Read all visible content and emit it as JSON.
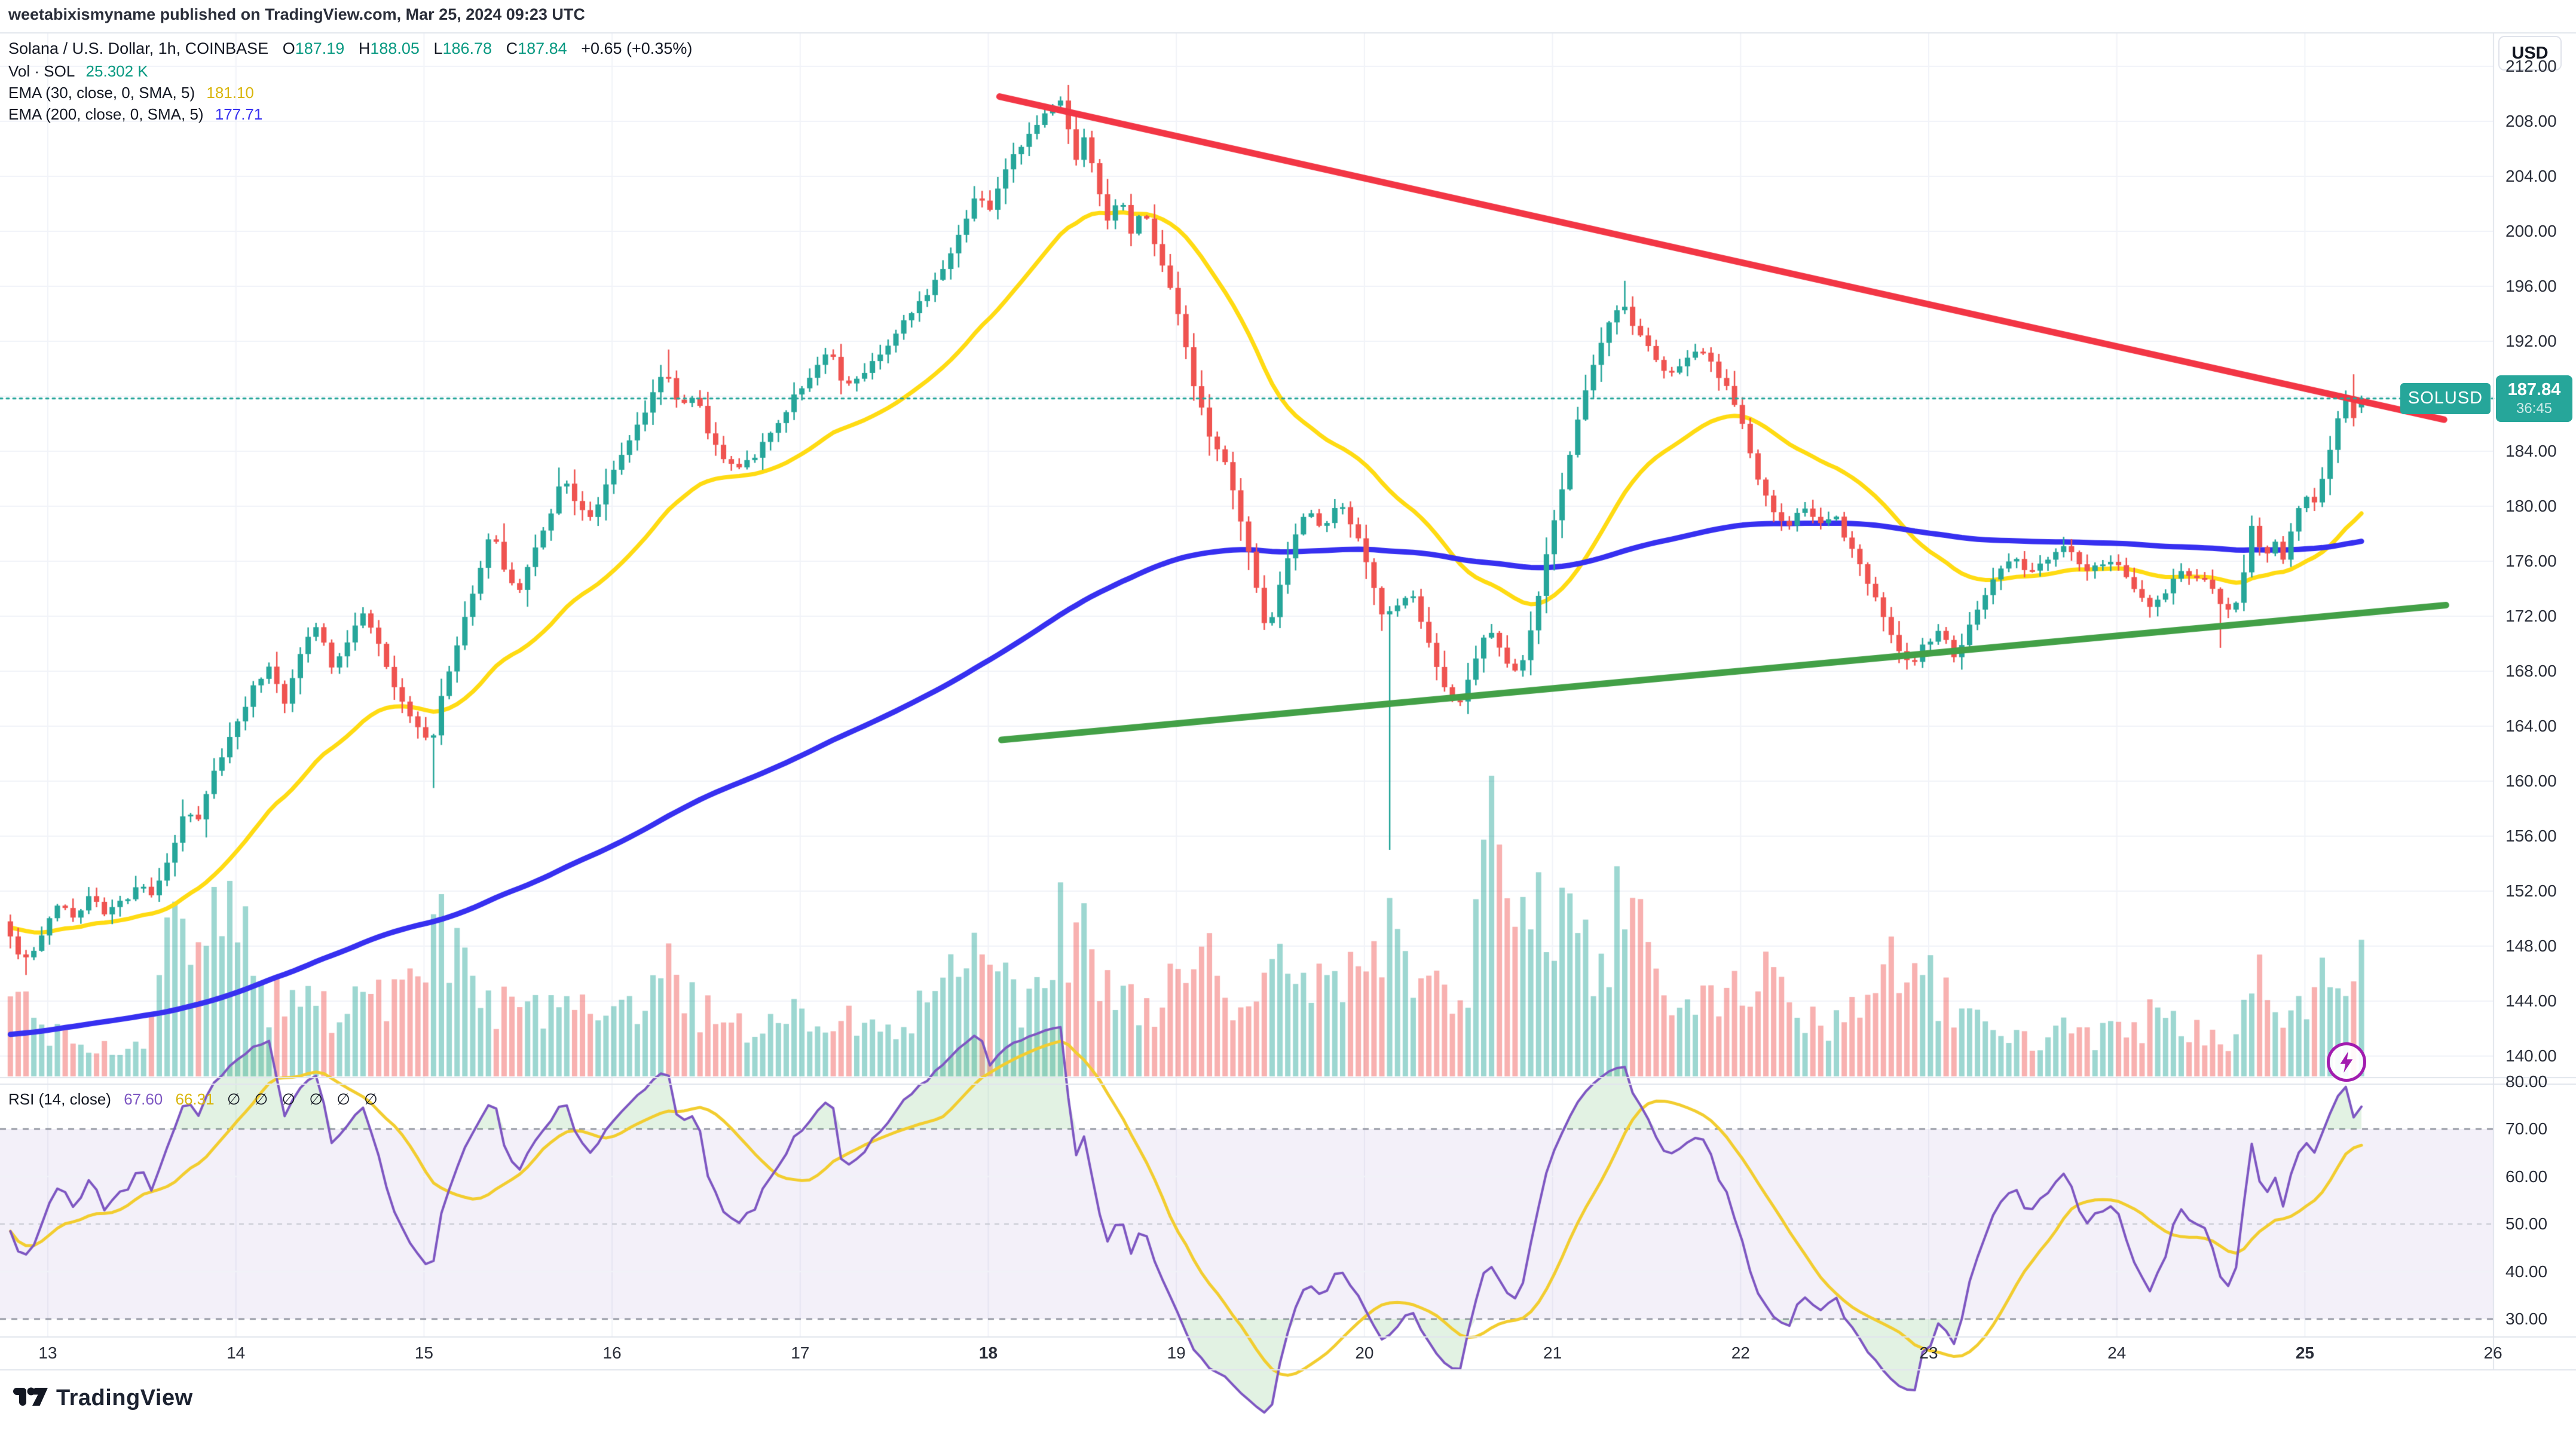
{
  "header": {
    "watermark": "weetabixismyname published on TradingView.com, Mar 25, 2024 09:23 UTC",
    "symbol_line": {
      "title": "Solana / U.S. Dollar, 1h, COINBASE",
      "open_label": "O",
      "open": "187.19",
      "high_label": "H",
      "high": "188.05",
      "low_label": "L",
      "low": "186.78",
      "close_label": "C",
      "close": "187.84",
      "change": "+0.65 (+0.35%)"
    },
    "volume_line": {
      "label": "Vol · SOL",
      "value": "25.302 K"
    },
    "ema30_line": {
      "label": "EMA (30, close, 0, SMA, 5)",
      "value": "181.10"
    },
    "ema200_line": {
      "label": "EMA (200, close, 0, SMA, 5)",
      "value": "177.71"
    }
  },
  "price_axis": {
    "currency_button": "USD",
    "tick_values": [
      212,
      208,
      204,
      200,
      196,
      192,
      188,
      184,
      180,
      176,
      172,
      168,
      164,
      160,
      156,
      152,
      148,
      144,
      140
    ],
    "price_label": {
      "symbol": "SOLUSD",
      "price": "187.84",
      "countdown": "36:45"
    }
  },
  "rsi_axis": {
    "tick_values": [
      80,
      70,
      60,
      50,
      40,
      30
    ]
  },
  "time_axis": {
    "ticks": [
      {
        "label": "13",
        "bold": false
      },
      {
        "label": "14",
        "bold": false
      },
      {
        "label": "15",
        "bold": false
      },
      {
        "label": "16",
        "bold": false
      },
      {
        "label": "17",
        "bold": false
      },
      {
        "label": "18",
        "bold": true
      },
      {
        "label": "19",
        "bold": false
      },
      {
        "label": "20",
        "bold": false
      },
      {
        "label": "21",
        "bold": false
      },
      {
        "label": "22",
        "bold": false
      },
      {
        "label": "23",
        "bold": false
      },
      {
        "label": "24",
        "bold": false
      },
      {
        "label": "25",
        "bold": true
      },
      {
        "label": "26",
        "bold": false
      }
    ]
  },
  "rsi_legend": {
    "title": "RSI (14, close)",
    "value": "67.60",
    "ma_value": "66.31",
    "empty_values": "∅ ∅ ∅ ∅ ∅ ∅"
  },
  "footer": {
    "logo_text": "TradingView"
  },
  "colors": {
    "up": "#26a69a",
    "down": "#ef5350",
    "vol_up": "rgba(38,166,154,0.45)",
    "vol_down": "rgba(239,83,80,0.45)",
    "ema30": "#ffdb13",
    "ema200": "#3730f0",
    "rsi": "#7e57c2",
    "rsi_ma": "#f2cd30",
    "rsi_band": "rgba(126,87,194,0.09)",
    "rsi_over_fill": "rgba(76,175,80,0.16)",
    "trend_red": "#f23645",
    "trend_green": "#43a047",
    "price_line": "#26a69a",
    "label_bg": "#26a69a",
    "grid": "#f1f3f8",
    "frame": "#e1e4ec",
    "text": "#131722",
    "text_green": "#089981",
    "dash_strong": "#8b8f9b",
    "dash_mid": "#c6c9d2"
  },
  "chart_data": {
    "type": "candlestick",
    "title": "Solana / U.S. Dollar",
    "symbol": "SOLUSD",
    "exchange": "COINBASE",
    "interval": "1h",
    "current_bar": {
      "open": 187.19,
      "high": 188.05,
      "low": 186.78,
      "close": 187.84,
      "volume_k": 25.302,
      "change": 0.65,
      "change_pct": 0.35
    },
    "price_line_value": 187.84,
    "x_axis": {
      "unit": "day of March 2024",
      "visible_range": [
        12.55,
        26.05
      ],
      "day_ticks": [
        13,
        14,
        15,
        16,
        17,
        18,
        19,
        20,
        21,
        22,
        23,
        24,
        25,
        26
      ]
    },
    "price_axis_range": [
      139.2,
      213.4
    ],
    "rsi_axis_range": [
      25,
      82
    ],
    "grid": true,
    "legend_position": "top-left",
    "indicators": {
      "volume": {
        "label": "Vol · SOL",
        "last_k": 25.302
      },
      "ema30": {
        "period": 30,
        "source": "close",
        "last": 181.1
      },
      "ema200": {
        "period": 200,
        "source": "close",
        "last": 177.71
      },
      "rsi": {
        "period": 14,
        "source": "close",
        "last": 67.6,
        "ma_last": 66.31,
        "overbought": 70,
        "oversold": 30,
        "middle": 50
      }
    },
    "trendlines": [
      {
        "name": "descending-resistance",
        "color_key": "trend_red",
        "from": {
          "day": 18.06,
          "price": 209.8
        },
        "to": {
          "day": 25.74,
          "price": 186.3
        }
      },
      {
        "name": "ascending-support",
        "color_key": "trend_green",
        "from": {
          "day": 18.07,
          "price": 163.0
        },
        "to": {
          "day": 25.75,
          "price": 172.8
        }
      }
    ],
    "series": {
      "start_day": 12.78,
      "bar_hours": 1,
      "bars": 301,
      "rng_seed": 42,
      "price_keyframes": [
        [
          12.78,
          149.8
        ],
        [
          12.86,
          147.6
        ],
        [
          12.92,
          146.8
        ],
        [
          13.0,
          149.0
        ],
        [
          13.08,
          151.3
        ],
        [
          13.16,
          150.0
        ],
        [
          13.24,
          151.8
        ],
        [
          13.32,
          150.4
        ],
        [
          13.42,
          151.2
        ],
        [
          13.5,
          152.4
        ],
        [
          13.58,
          151.6
        ],
        [
          13.68,
          155.0
        ],
        [
          13.76,
          158.0
        ],
        [
          13.82,
          157.0
        ],
        [
          13.9,
          160.5
        ],
        [
          14.0,
          163.5
        ],
        [
          14.1,
          166.5
        ],
        [
          14.2,
          168.5
        ],
        [
          14.28,
          165.8
        ],
        [
          14.38,
          170.0
        ],
        [
          14.46,
          171.6
        ],
        [
          14.52,
          168.2
        ],
        [
          14.6,
          169.5
        ],
        [
          14.68,
          172.4
        ],
        [
          14.76,
          170.5
        ],
        [
          14.84,
          167.5
        ],
        [
          14.92,
          165.2
        ],
        [
          15.0,
          163.6
        ],
        [
          15.06,
          162.9
        ],
        [
          15.14,
          167.5
        ],
        [
          15.22,
          171.0
        ],
        [
          15.3,
          174.5
        ],
        [
          15.38,
          178.4
        ],
        [
          15.46,
          175.0
        ],
        [
          15.52,
          173.8
        ],
        [
          15.6,
          176.5
        ],
        [
          15.68,
          179.0
        ],
        [
          15.76,
          182.3
        ],
        [
          15.84,
          180.0
        ],
        [
          15.92,
          179.0
        ],
        [
          16.0,
          182.0
        ],
        [
          16.1,
          184.5
        ],
        [
          16.2,
          187.0
        ],
        [
          16.3,
          190.2
        ],
        [
          16.38,
          187.0
        ],
        [
          16.46,
          188.3
        ],
        [
          16.54,
          185.0
        ],
        [
          16.62,
          183.5
        ],
        [
          16.7,
          182.8
        ],
        [
          16.8,
          184.0
        ],
        [
          16.9,
          186.0
        ],
        [
          17.0,
          188.2
        ],
        [
          17.1,
          190.0
        ],
        [
          17.18,
          191.2
        ],
        [
          17.26,
          188.5
        ],
        [
          17.34,
          189.5
        ],
        [
          17.42,
          190.8
        ],
        [
          17.5,
          192.0
        ],
        [
          17.58,
          193.5
        ],
        [
          17.66,
          194.8
        ],
        [
          17.74,
          196.5
        ],
        [
          17.82,
          198.5
        ],
        [
          17.9,
          201.0
        ],
        [
          17.96,
          202.8
        ],
        [
          18.02,
          201.5
        ],
        [
          18.1,
          204.0
        ],
        [
          18.18,
          206.0
        ],
        [
          18.26,
          207.5
        ],
        [
          18.34,
          208.8
        ],
        [
          18.42,
          209.6
        ],
        [
          18.48,
          204.8
        ],
        [
          18.54,
          207.0
        ],
        [
          18.6,
          203.0
        ],
        [
          18.66,
          200.5
        ],
        [
          18.72,
          202.5
        ],
        [
          18.78,
          199.8
        ],
        [
          18.84,
          201.5
        ],
        [
          18.9,
          199.5
        ],
        [
          18.96,
          197.0
        ],
        [
          19.04,
          193.5
        ],
        [
          19.12,
          188.5
        ],
        [
          19.2,
          185.0
        ],
        [
          19.28,
          183.0
        ],
        [
          19.36,
          179.0
        ],
        [
          19.44,
          174.5
        ],
        [
          19.5,
          170.5
        ],
        [
          19.56,
          173.5
        ],
        [
          19.64,
          177.5
        ],
        [
          19.72,
          180.0
        ],
        [
          19.8,
          178.0
        ],
        [
          19.88,
          180.5
        ],
        [
          19.96,
          178.5
        ],
        [
          20.04,
          175.5
        ],
        [
          20.12,
          172.0
        ],
        [
          20.2,
          172.8
        ],
        [
          20.28,
          173.5
        ],
        [
          20.36,
          170.0
        ],
        [
          20.44,
          167.0
        ],
        [
          20.52,
          165.5
        ],
        [
          20.6,
          168.5
        ],
        [
          20.68,
          171.5
        ],
        [
          20.76,
          169.0
        ],
        [
          20.84,
          167.8
        ],
        [
          20.92,
          172.0
        ],
        [
          21.0,
          177.0
        ],
        [
          21.08,
          182.0
        ],
        [
          21.16,
          186.5
        ],
        [
          21.24,
          190.5
        ],
        [
          21.32,
          193.5
        ],
        [
          21.4,
          194.5
        ],
        [
          21.48,
          192.5
        ],
        [
          21.56,
          191.0
        ],
        [
          21.64,
          189.5
        ],
        [
          21.72,
          190.5
        ],
        [
          21.8,
          191.5
        ],
        [
          21.88,
          190.0
        ],
        [
          21.96,
          188.5
        ],
        [
          22.04,
          185.5
        ],
        [
          22.12,
          181.5
        ],
        [
          22.2,
          179.5
        ],
        [
          22.28,
          178.5
        ],
        [
          22.36,
          180.0
        ],
        [
          22.44,
          178.5
        ],
        [
          22.52,
          179.5
        ],
        [
          22.6,
          177.0
        ],
        [
          22.68,
          175.0
        ],
        [
          22.76,
          172.5
        ],
        [
          22.84,
          170.0
        ],
        [
          22.92,
          168.3
        ],
        [
          23.0,
          170.0
        ],
        [
          23.08,
          171.0
        ],
        [
          23.16,
          168.8
        ],
        [
          23.24,
          171.5
        ],
        [
          23.32,
          173.5
        ],
        [
          23.4,
          175.5
        ],
        [
          23.48,
          176.3
        ],
        [
          23.56,
          175.0
        ],
        [
          23.64,
          176.0
        ],
        [
          23.72,
          177.2
        ],
        [
          23.8,
          176.2
        ],
        [
          23.88,
          175.2
        ],
        [
          23.96,
          176.0
        ],
        [
          24.04,
          175.5
        ],
        [
          24.12,
          174.0
        ],
        [
          24.2,
          172.8
        ],
        [
          24.28,
          173.8
        ],
        [
          24.36,
          175.2
        ],
        [
          24.44,
          174.8
        ],
        [
          24.52,
          174.2
        ],
        [
          24.6,
          172.5
        ],
        [
          24.68,
          173.5
        ],
        [
          24.74,
          178.8
        ],
        [
          24.8,
          176.0
        ],
        [
          24.86,
          177.5
        ],
        [
          24.9,
          175.6
        ],
        [
          24.96,
          178.9
        ],
        [
          25.02,
          181.0
        ],
        [
          25.08,
          180.2
        ],
        [
          25.14,
          183.5
        ],
        [
          25.2,
          186.5
        ],
        [
          25.24,
          188.0
        ],
        [
          25.27,
          186.0
        ],
        [
          25.3,
          187.3
        ],
        [
          25.32,
          187.84
        ]
      ],
      "wick_events": [
        {
          "day": 12.9,
          "low": 145.9
        },
        {
          "day": 15.06,
          "low": 159.5
        },
        {
          "day": 16.3,
          "high": 191.4
        },
        {
          "day": 18.42,
          "high": 210.3
        },
        {
          "day": 20.12,
          "low": 155.0
        },
        {
          "day": 21.4,
          "high": 196.4
        },
        {
          "day": 24.56,
          "low": 169.7
        },
        {
          "day": 25.26,
          "high": 189.6
        }
      ],
      "volume_keyframes_k": [
        [
          12.78,
          10
        ],
        [
          12.82,
          16
        ],
        [
          12.86,
          13
        ],
        [
          12.92,
          11
        ],
        [
          13.0,
          9
        ],
        [
          13.1,
          7
        ],
        [
          13.2,
          5
        ],
        [
          13.32,
          6
        ],
        [
          13.45,
          5
        ],
        [
          13.55,
          8
        ],
        [
          13.62,
          24
        ],
        [
          13.7,
          30
        ],
        [
          13.78,
          22
        ],
        [
          13.88,
          38
        ],
        [
          13.96,
          30
        ],
        [
          14.04,
          26
        ],
        [
          14.12,
          15
        ],
        [
          14.25,
          13
        ],
        [
          14.4,
          16
        ],
        [
          14.55,
          11
        ],
        [
          14.7,
          15
        ],
        [
          14.85,
          13
        ],
        [
          15.0,
          18
        ],
        [
          15.08,
          30
        ],
        [
          15.2,
          22
        ],
        [
          15.35,
          15
        ],
        [
          15.5,
          11
        ],
        [
          15.65,
          13
        ],
        [
          15.8,
          15
        ],
        [
          15.95,
          9
        ],
        [
          16.1,
          12
        ],
        [
          16.3,
          19
        ],
        [
          16.45,
          13
        ],
        [
          16.6,
          10
        ],
        [
          16.8,
          9
        ],
        [
          17.0,
          11
        ],
        [
          17.2,
          13
        ],
        [
          17.4,
          9
        ],
        [
          17.6,
          12
        ],
        [
          17.8,
          17
        ],
        [
          17.95,
          24
        ],
        [
          18.1,
          15
        ],
        [
          18.25,
          13
        ],
        [
          18.4,
          28
        ],
        [
          18.5,
          26
        ],
        [
          18.62,
          19
        ],
        [
          18.75,
          13
        ],
        [
          18.9,
          15
        ],
        [
          19.0,
          21
        ],
        [
          19.1,
          24
        ],
        [
          19.25,
          17
        ],
        [
          19.4,
          15
        ],
        [
          19.5,
          21
        ],
        [
          19.65,
          15
        ],
        [
          19.8,
          24
        ],
        [
          19.95,
          17
        ],
        [
          20.1,
          27
        ],
        [
          20.25,
          15
        ],
        [
          20.4,
          19
        ],
        [
          20.55,
          13
        ],
        [
          20.65,
          55
        ],
        [
          20.75,
          23
        ],
        [
          20.85,
          37
        ],
        [
          20.95,
          29
        ],
        [
          21.1,
          25
        ],
        [
          21.25,
          21
        ],
        [
          21.4,
          34
        ],
        [
          21.55,
          15
        ],
        [
          21.7,
          11
        ],
        [
          21.85,
          13
        ],
        [
          22.0,
          15
        ],
        [
          22.1,
          25
        ],
        [
          22.25,
          13
        ],
        [
          22.4,
          9
        ],
        [
          22.55,
          11
        ],
        [
          22.7,
          13
        ],
        [
          22.85,
          23
        ],
        [
          23.0,
          17
        ],
        [
          23.15,
          11
        ],
        [
          23.3,
          13
        ],
        [
          23.45,
          9
        ],
        [
          23.6,
          7
        ],
        [
          23.75,
          9
        ],
        [
          23.9,
          7
        ],
        [
          24.05,
          8
        ],
        [
          24.2,
          11
        ],
        [
          24.35,
          9
        ],
        [
          24.5,
          7
        ],
        [
          24.6,
          6
        ],
        [
          24.72,
          19
        ],
        [
          24.85,
          11
        ],
        [
          25.0,
          13
        ],
        [
          25.1,
          17
        ],
        [
          25.2,
          15
        ],
        [
          25.32,
          25.3
        ]
      ],
      "volume_max_k": 62
    }
  }
}
